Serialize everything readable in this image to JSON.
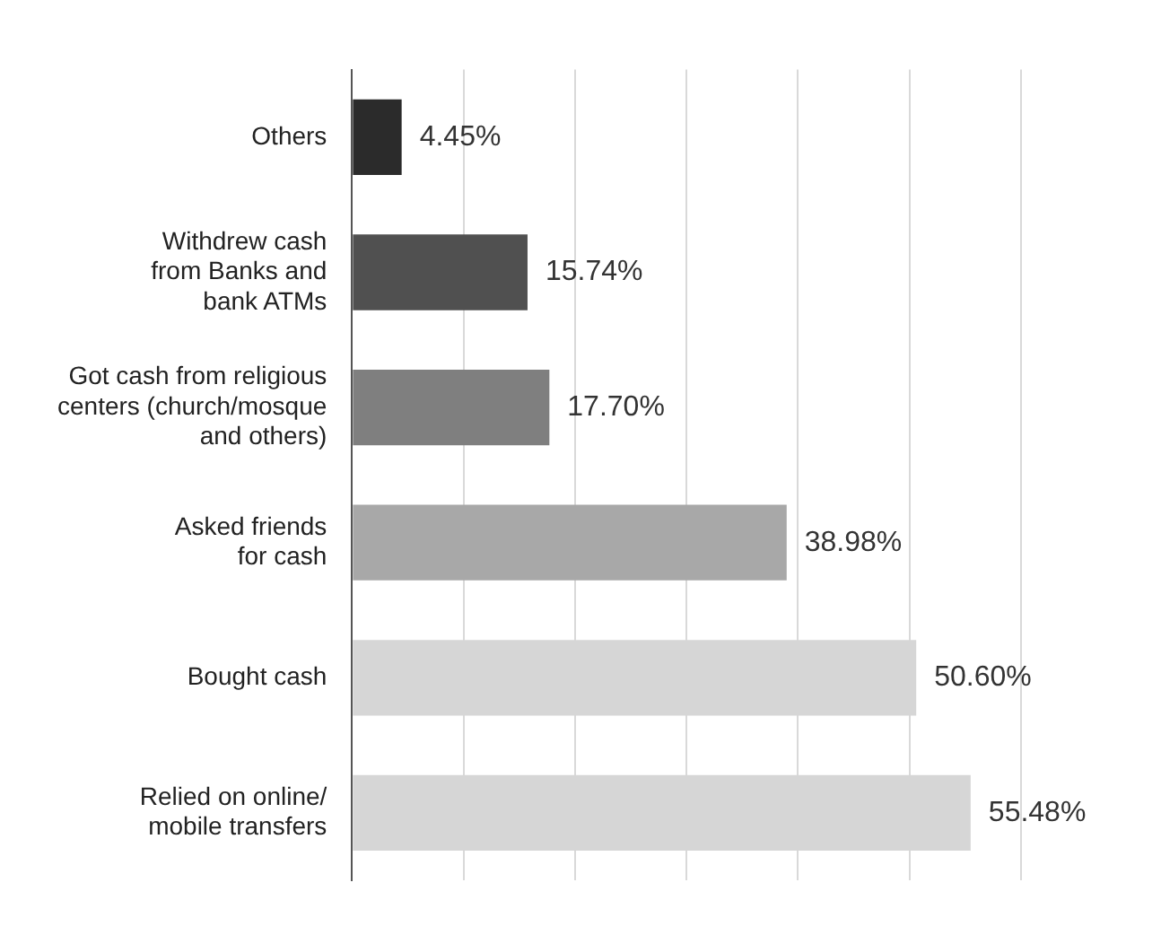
{
  "chart_data": {
    "type": "bar",
    "orientation": "horizontal",
    "categories": [
      "Others",
      "Withdrew cash\nfrom Banks and\nbank ATMs",
      "Got cash from religious\ncenters (church/mosque\nand others)",
      "Asked friends\nfor cash",
      "Bought cash",
      "Relied on online/\nmobile transfers"
    ],
    "values": [
      4.45,
      15.74,
      17.7,
      38.98,
      50.6,
      55.48
    ],
    "colors": [
      "#2b2b2b",
      "#505050",
      "#7f7f7f",
      "#a8a8a8",
      "#d6d6d6",
      "#d6d6d6"
    ],
    "value_labels": [
      "4.45%",
      "15.74%",
      "17.70%",
      "38.98%",
      "50.60%",
      "55.48%"
    ],
    "xlim": [
      0,
      60
    ],
    "xticks": [
      {
        "value": 0,
        "label": null
      },
      {
        "value": 10,
        "label": null
      },
      {
        "value": 20,
        "label": null
      },
      {
        "value": 30,
        "label": null
      },
      {
        "value": 40,
        "label": null
      },
      {
        "value": 50,
        "label": null
      },
      {
        "value": 60,
        "label": null
      }
    ],
    "grid": "x",
    "tick_labels": "y"
  }
}
